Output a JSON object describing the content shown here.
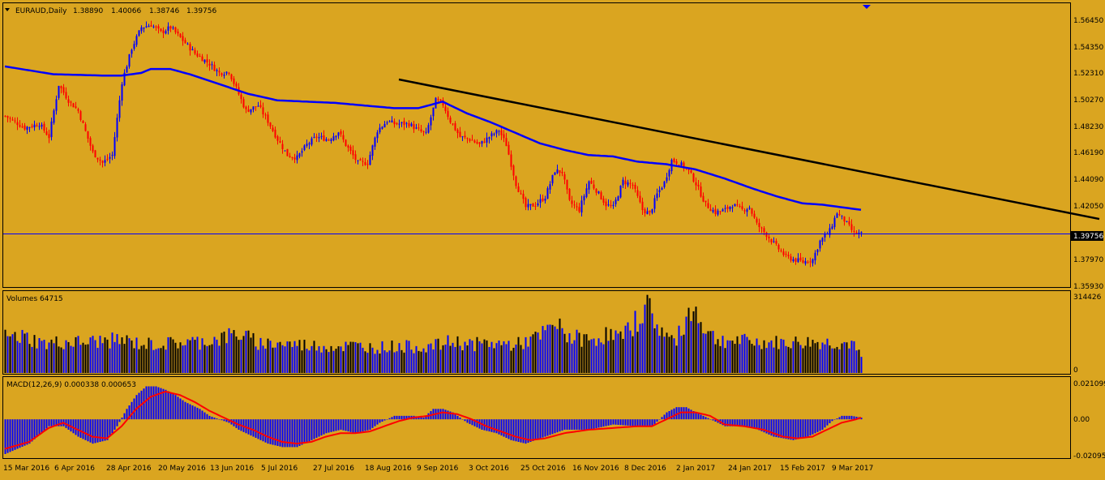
{
  "colors": {
    "background": "#DAA520",
    "bull_candle": "#0000FF",
    "bear_candle": "#FF0000",
    "ma_line": "#0000FF",
    "trendline": "#000000",
    "volume_bar_bull": "#0000FF",
    "volume_bar_bear": "#000000",
    "macd_histogram": "#0000FF",
    "macd_signal": "#FF0000",
    "current_price_line": "#0000FF",
    "text": "#000000"
  },
  "header": {
    "title": "EURAUD,Daily",
    "open": "1.38890",
    "high": "1.40066",
    "low": "1.38746",
    "close": "1.39756",
    "menu_icon": "triangle-down-icon"
  },
  "price_scale": [
    "1.56450",
    "1.54350",
    "1.52310",
    "1.50270",
    "1.48230",
    "1.46190",
    "1.44090",
    "1.42050",
    "1.39756",
    "1.37970",
    "1.35930"
  ],
  "current_price_label": "1.39756",
  "volume_panel": {
    "label": "Volumes 64715",
    "scale_top": "314426",
    "scale_bottom": "0"
  },
  "macd_panel": {
    "label": "MACD(12,26,9) 0.000338 0.000653",
    "scale": [
      "0.021099",
      "0.00",
      "-0.020953"
    ]
  },
  "date_labels": [
    "15 Mar 2016",
    "6 Apr 2016",
    "28 Apr 2016",
    "20 May 2016",
    "13 Jun 2016",
    "5 Jul 2016",
    "27 Jul 2016",
    "18 Aug 2016",
    "9 Sep 2016",
    "3 Oct 2016",
    "25 Oct 2016",
    "16 Nov 2016",
    "8 Dec 2016",
    "2 Jan 2017",
    "24 Jan 2017",
    "15 Feb 2017",
    "9 Mar 2017"
  ],
  "chart_data": [
    {
      "type": "candlestick",
      "symbol": "EURAUD",
      "timeframe": "Daily",
      "y_range": [
        1.3593,
        1.5645
      ],
      "close_path": [
        [
          0,
          1.488
        ],
        [
          8,
          1.479
        ],
        [
          14,
          1.482
        ],
        [
          18,
          1.472
        ],
        [
          22,
          1.512
        ],
        [
          26,
          1.5
        ],
        [
          30,
          1.492
        ],
        [
          36,
          1.46
        ],
        [
          40,
          1.452
        ],
        [
          44,
          1.458
        ],
        [
          48,
          1.514
        ],
        [
          52,
          1.54
        ],
        [
          56,
          1.556
        ],
        [
          60,
          1.558
        ],
        [
          64,
          1.552
        ],
        [
          68,
          1.556
        ],
        [
          72,
          1.548
        ],
        [
          78,
          1.536
        ],
        [
          84,
          1.528
        ],
        [
          88,
          1.521
        ],
        [
          92,
          1.522
        ],
        [
          95,
          1.509
        ],
        [
          99,
          1.492
        ],
        [
          104,
          1.496
        ],
        [
          108,
          1.484
        ],
        [
          112,
          1.47
        ],
        [
          116,
          1.458
        ],
        [
          120,
          1.456
        ],
        [
          124,
          1.466
        ],
        [
          128,
          1.472
        ],
        [
          133,
          1.47
        ],
        [
          137,
          1.476
        ],
        [
          140,
          1.466
        ],
        [
          145,
          1.452
        ],
        [
          149,
          1.452
        ],
        [
          153,
          1.477
        ],
        [
          157,
          1.484
        ],
        [
          160,
          1.482
        ],
        [
          166,
          1.482
        ],
        [
          169,
          1.478
        ],
        [
          173,
          1.474
        ],
        [
          177,
          1.5
        ],
        [
          180,
          1.497
        ],
        [
          183,
          1.484
        ],
        [
          187,
          1.472
        ],
        [
          191,
          1.47
        ],
        [
          195,
          1.466
        ],
        [
          199,
          1.472
        ],
        [
          203,
          1.477
        ],
        [
          206,
          1.466
        ],
        [
          210,
          1.436
        ],
        [
          214,
          1.418
        ],
        [
          218,
          1.42
        ],
        [
          222,
          1.426
        ],
        [
          226,
          1.446
        ],
        [
          229,
          1.445
        ],
        [
          232,
          1.422
        ],
        [
          236,
          1.416
        ],
        [
          240,
          1.438
        ],
        [
          243,
          1.431
        ],
        [
          247,
          1.42
        ],
        [
          250,
          1.418
        ],
        [
          254,
          1.438
        ],
        [
          258,
          1.435
        ],
        [
          262,
          1.416
        ],
        [
          265,
          1.413
        ],
        [
          268,
          1.428
        ],
        [
          271,
          1.437
        ],
        [
          274,
          1.454
        ],
        [
          277,
          1.452
        ],
        [
          281,
          1.446
        ],
        [
          284,
          1.436
        ],
        [
          288,
          1.42
        ],
        [
          292,
          1.414
        ],
        [
          296,
          1.416
        ],
        [
          299,
          1.42
        ],
        [
          303,
          1.416
        ],
        [
          306,
          1.418
        ],
        [
          309,
          1.405
        ],
        [
          313,
          1.397
        ],
        [
          317,
          1.388
        ],
        [
          321,
          1.38
        ],
        [
          324,
          1.378
        ],
        [
          328,
          1.376
        ],
        [
          332,
          1.378
        ],
        [
          335,
          1.392
        ],
        [
          339,
          1.4
        ],
        [
          342,
          1.414
        ],
        [
          345,
          1.408
        ],
        [
          349,
          1.398
        ],
        [
          352,
          1.3976
        ]
      ],
      "ma_period_line": [
        [
          0,
          1.526
        ],
        [
          20,
          1.52
        ],
        [
          40,
          1.519
        ],
        [
          48,
          1.519
        ],
        [
          56,
          1.521
        ],
        [
          60,
          1.524
        ],
        [
          68,
          1.524
        ],
        [
          76,
          1.52
        ],
        [
          84,
          1.515
        ],
        [
          92,
          1.51
        ],
        [
          100,
          1.505
        ],
        [
          112,
          1.5
        ],
        [
          124,
          1.499
        ],
        [
          136,
          1.498
        ],
        [
          148,
          1.496
        ],
        [
          160,
          1.494
        ],
        [
          170,
          1.494
        ],
        [
          176,
          1.497
        ],
        [
          180,
          1.499
        ],
        [
          190,
          1.49
        ],
        [
          200,
          1.483
        ],
        [
          210,
          1.475
        ],
        [
          220,
          1.467
        ],
        [
          230,
          1.462
        ],
        [
          240,
          1.458
        ],
        [
          250,
          1.457
        ],
        [
          260,
          1.453
        ],
        [
          272,
          1.451
        ],
        [
          284,
          1.447
        ],
        [
          296,
          1.44
        ],
        [
          308,
          1.432
        ],
        [
          318,
          1.426
        ],
        [
          328,
          1.421
        ],
        [
          336,
          1.42
        ],
        [
          344,
          1.418
        ],
        [
          352,
          1.416
        ]
      ],
      "trendline": [
        [
          162,
          1.516
        ],
        [
          450,
          1.409
        ]
      ],
      "current_price": 1.39756
    },
    {
      "type": "bar",
      "title": "Volumes",
      "y_range": [
        0,
        314426
      ],
      "values_path": [
        [
          0,
          148000
        ],
        [
          8,
          150000
        ],
        [
          16,
          120000
        ],
        [
          24,
          128000
        ],
        [
          32,
          126000
        ],
        [
          40,
          132000
        ],
        [
          48,
          135000
        ],
        [
          56,
          120000
        ],
        [
          64,
          118000
        ],
        [
          72,
          126000
        ],
        [
          80,
          128000
        ],
        [
          88,
          142000
        ],
        [
          96,
          162000
        ],
        [
          104,
          124000
        ],
        [
          112,
          122000
        ],
        [
          120,
          118000
        ],
        [
          128,
          112000
        ],
        [
          136,
          110000
        ],
        [
          144,
          112000
        ],
        [
          152,
          105000
        ],
        [
          160,
          110000
        ],
        [
          168,
          108000
        ],
        [
          176,
          110000
        ],
        [
          184,
          130000
        ],
        [
          192,
          118000
        ],
        [
          200,
          122000
        ],
        [
          210,
          116000
        ],
        [
          220,
          150000
        ],
        [
          226,
          200000
        ],
        [
          232,
          150000
        ],
        [
          240,
          135000
        ],
        [
          248,
          160000
        ],
        [
          254,
          145000
        ],
        [
          260,
          225000
        ],
        [
          264,
          280000
        ],
        [
          268,
          200000
        ],
        [
          272,
          150000
        ],
        [
          276,
          130000
        ],
        [
          280,
          235000
        ],
        [
          284,
          260000
        ],
        [
          288,
          180000
        ],
        [
          292,
          140000
        ],
        [
          300,
          132000
        ],
        [
          310,
          126000
        ],
        [
          320,
          124000
        ],
        [
          330,
          126000
        ],
        [
          340,
          124000
        ],
        [
          348,
          120000
        ],
        [
          352,
          64715
        ]
      ]
    },
    {
      "type": "line",
      "title": "MACD(12,26,9)",
      "y_range": [
        -0.020953,
        0.021099
      ],
      "series": [
        {
          "values_path": [
            [
              0,
              -0.02
            ],
            [
              10,
              -0.014
            ],
            [
              18,
              -0.004
            ],
            [
              24,
              -0.004
            ],
            [
              30,
              -0.01
            ],
            [
              36,
              -0.014
            ],
            [
              42,
              -0.012
            ],
            [
              46,
              -0.004
            ],
            [
              50,
              0.006
            ],
            [
              54,
              0.014
            ],
            [
              58,
              0.019
            ],
            [
              62,
              0.019
            ],
            [
              66,
              0.017
            ],
            [
              70,
              0.014
            ],
            [
              74,
              0.01
            ],
            [
              80,
              0.006
            ],
            [
              84,
              0.002
            ],
            [
              88,
              0.0
            ],
            [
              92,
              -0.002
            ],
            [
              96,
              -0.006
            ],
            [
              102,
              -0.01
            ],
            [
              108,
              -0.014
            ],
            [
              114,
              -0.016
            ],
            [
              120,
              -0.016
            ],
            [
              126,
              -0.012
            ],
            [
              132,
              -0.008
            ],
            [
              138,
              -0.006
            ],
            [
              144,
              -0.008
            ],
            [
              150,
              -0.006
            ],
            [
              154,
              -0.002
            ],
            [
              160,
              0.002
            ],
            [
              168,
              0.002
            ],
            [
              172,
              0.001
            ],
            [
              176,
              0.006
            ],
            [
              180,
              0.006
            ],
            [
              184,
              0.004
            ],
            [
              190,
              -0.002
            ],
            [
              196,
              -0.006
            ],
            [
              202,
              -0.008
            ],
            [
              208,
              -0.012
            ],
            [
              214,
              -0.014
            ],
            [
              222,
              -0.01
            ],
            [
              230,
              -0.006
            ],
            [
              240,
              -0.006
            ],
            [
              250,
              -0.003
            ],
            [
              260,
              -0.004
            ],
            [
              266,
              -0.004
            ],
            [
              272,
              0.004
            ],
            [
              276,
              0.007
            ],
            [
              280,
              0.007
            ],
            [
              284,
              0.004
            ],
            [
              290,
              0.0
            ],
            [
              296,
              -0.004
            ],
            [
              302,
              -0.004
            ],
            [
              308,
              -0.005
            ],
            [
              316,
              -0.01
            ],
            [
              324,
              -0.012
            ],
            [
              330,
              -0.01
            ],
            [
              336,
              -0.006
            ],
            [
              340,
              -0.001
            ],
            [
              344,
              0.002
            ],
            [
              348,
              0.002
            ],
            [
              352,
              0.001
            ]
          ]
        },
        {
          "values_path": [
            [
              0,
              -0.017
            ],
            [
              10,
              -0.013
            ],
            [
              18,
              -0.005
            ],
            [
              24,
              -0.002
            ],
            [
              30,
              -0.006
            ],
            [
              36,
              -0.01
            ],
            [
              42,
              -0.011
            ],
            [
              48,
              -0.004
            ],
            [
              54,
              0.006
            ],
            [
              60,
              0.013
            ],
            [
              66,
              0.016
            ],
            [
              72,
              0.014
            ],
            [
              78,
              0.01
            ],
            [
              84,
              0.005
            ],
            [
              90,
              0.001
            ],
            [
              96,
              -0.003
            ],
            [
              102,
              -0.006
            ],
            [
              108,
              -0.01
            ],
            [
              114,
              -0.013
            ],
            [
              120,
              -0.014
            ],
            [
              126,
              -0.013
            ],
            [
              132,
              -0.01
            ],
            [
              138,
              -0.008
            ],
            [
              144,
              -0.008
            ],
            [
              150,
              -0.007
            ],
            [
              156,
              -0.004
            ],
            [
              162,
              -0.001
            ],
            [
              168,
              0.001
            ],
            [
              174,
              0.002
            ],
            [
              180,
              0.004
            ],
            [
              186,
              0.003
            ],
            [
              192,
              0.0
            ],
            [
              198,
              -0.004
            ],
            [
              204,
              -0.007
            ],
            [
              210,
              -0.01
            ],
            [
              216,
              -0.012
            ],
            [
              222,
              -0.011
            ],
            [
              230,
              -0.008
            ],
            [
              240,
              -0.006
            ],
            [
              250,
              -0.005
            ],
            [
              260,
              -0.004
            ],
            [
              266,
              -0.004
            ],
            [
              272,
              0.0
            ],
            [
              278,
              0.004
            ],
            [
              284,
              0.004
            ],
            [
              290,
              0.002
            ],
            [
              296,
              -0.003
            ],
            [
              304,
              -0.004
            ],
            [
              312,
              -0.006
            ],
            [
              320,
              -0.01
            ],
            [
              326,
              -0.011
            ],
            [
              332,
              -0.01
            ],
            [
              338,
              -0.006
            ],
            [
              344,
              -0.002
            ],
            [
              350,
              0.0
            ],
            [
              352,
              0.001
            ]
          ]
        }
      ]
    }
  ]
}
